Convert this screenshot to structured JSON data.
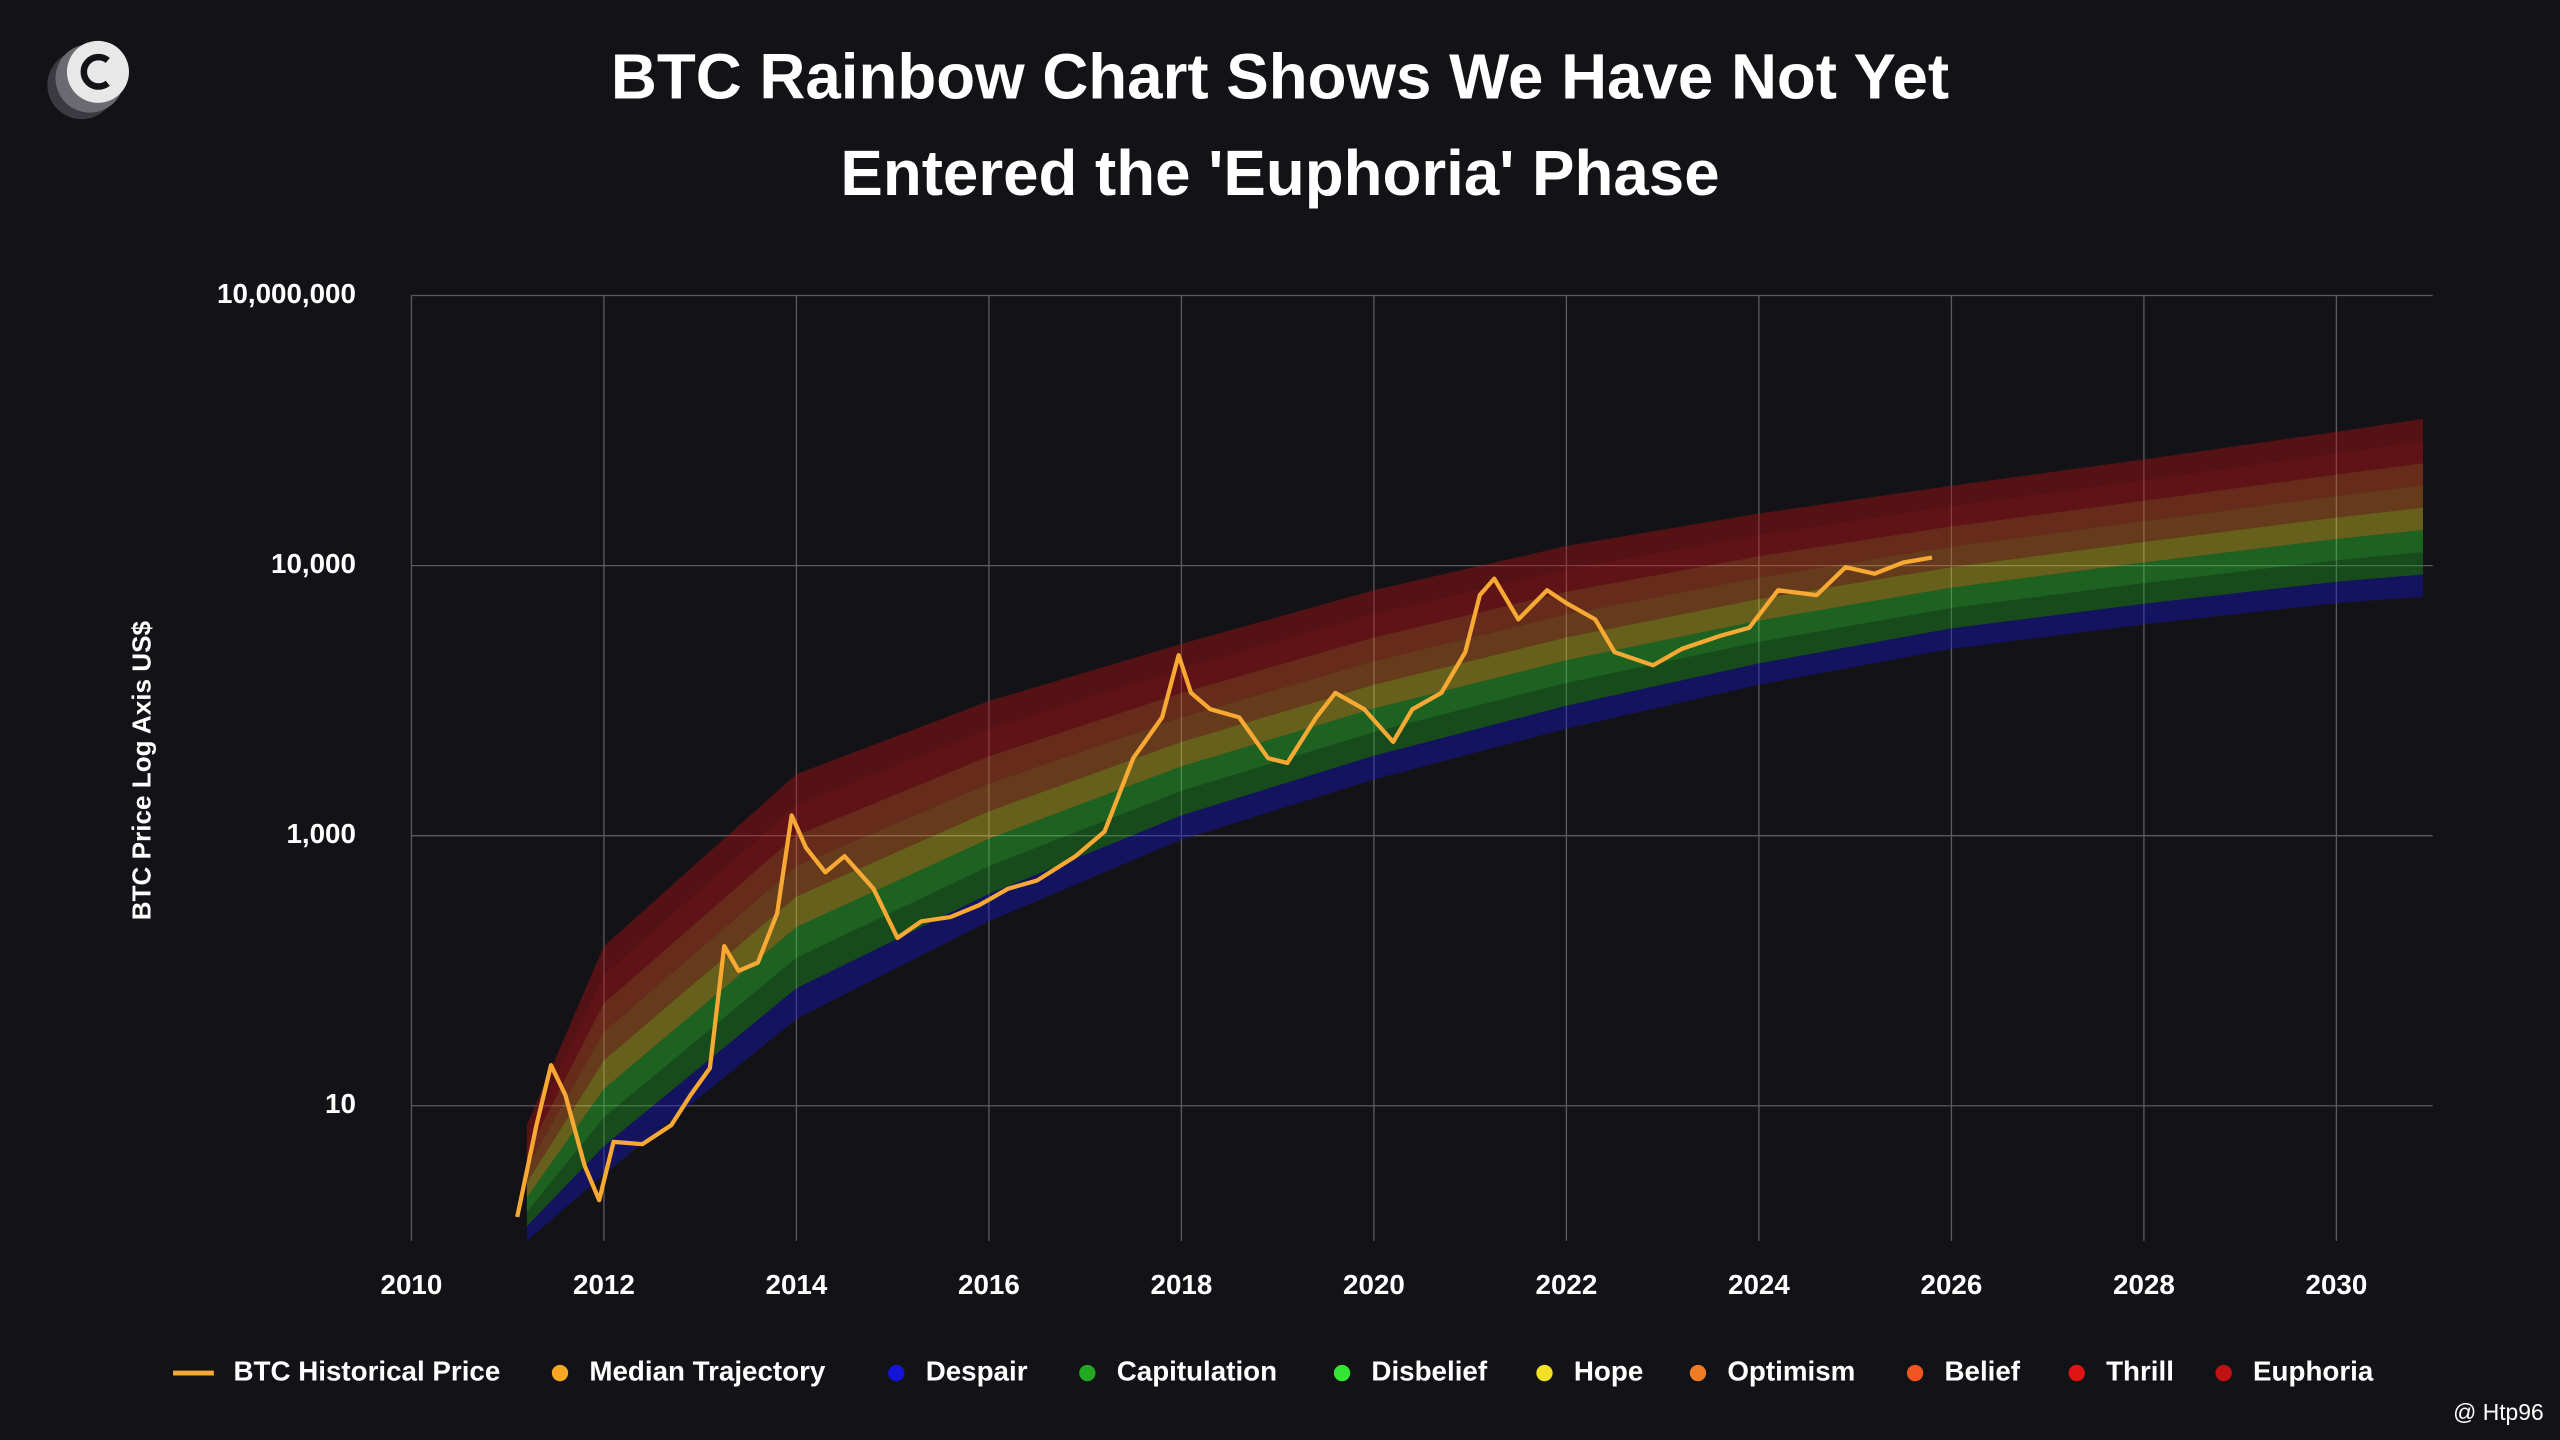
{
  "chart_data": {
    "type": "line",
    "title": [
      "BTC Rainbow Chart Shows We Have Not Yet",
      "Entered the 'Euphoria' Phase"
    ],
    "y_label": "BTC Price Log Axis US$",
    "log_scale": true,
    "grid": true,
    "legend": "bottom",
    "xlim": [
      2010,
      2031
    ],
    "xticks": [
      2010,
      2012,
      2014,
      2016,
      2018,
      2020,
      2022,
      2024,
      2026,
      2028,
      2030
    ],
    "ylim": [
      1,
      10000000
    ],
    "yticks": [
      10,
      {
        "value": 1000,
        "label": "1,000"
      },
      {
        "value": 10000,
        "label": "10,000"
      },
      {
        "value": 10000000,
        "label": "10,000,000"
      }
    ],
    "series": [
      {
        "name": "BTC Historical Price",
        "color": "#f7a934",
        "x": [
          2011.1,
          2011.3,
          2011.45,
          2011.6,
          2011.8,
          2011.95,
          2012.1,
          2012.4,
          2012.7,
          2012.9,
          2013.1,
          2013.25,
          2013.4,
          2013.6,
          2013.8,
          2013.95,
          2014.1,
          2014.3,
          2014.5,
          2014.8,
          2015.05,
          2015.3,
          2015.6,
          2015.9,
          2016.2,
          2016.5,
          2016.9,
          2017.2,
          2017.5,
          2017.8,
          2017.97,
          2018.1,
          2018.3,
          2018.6,
          2018.9,
          2019.1,
          2019.4,
          2019.6,
          2019.9,
          2020.2,
          2020.4,
          2020.7,
          2020.95,
          2021.1,
          2021.25,
          2021.5,
          2021.8,
          2022.0,
          2022.3,
          2022.5,
          2022.9,
          2023.2,
          2023.6,
          2023.9,
          2024.2,
          2024.6,
          2024.9,
          2025.2,
          2025.5,
          2025.8
        ],
        "values": [
          1.5,
          7.2,
          20,
          12,
          3.6,
          2.0,
          5.4,
          5.2,
          7.2,
          12,
          19,
          152,
          100,
          115,
          266,
          1190,
          813,
          535,
          705,
          405,
          175,
          232,
          250,
          306,
          405,
          466,
          705,
          1035,
          1937,
          2743,
          4656,
          3380,
          2940,
          2743,
          1937,
          1858,
          2743,
          3380,
          2940,
          2225,
          2940,
          3380,
          4786,
          7780,
          8950,
          6320,
          8110,
          7260,
          6320,
          4786,
          4276,
          4920,
          5500,
          5890,
          8110,
          7780,
          9860,
          9330,
          10860,
          12300
        ]
      }
    ],
    "median": {
      "name": "Median Trajectory",
      "color": "#f5a623"
    },
    "rainbow": {
      "x": [
        2011.2,
        2012,
        2014,
        2016,
        2018,
        2020,
        2022,
        2024,
        2026,
        2028,
        2030,
        2030.9
      ],
      "lower": [
        1.0,
        3.1,
        44,
        232,
        933,
        1615,
        2490,
        3620,
        4920,
        6060,
        7260,
        7670
      ],
      "upper": [
        7.2,
        152,
        1690,
        3150,
        5130,
        8110,
        16500,
        38000,
        77300,
        151000,
        306000,
        428000
      ],
      "bands": [
        {
          "name": "Despair",
          "color": "#1414d8"
        },
        {
          "name": "Capitulation",
          "color": "#22a822"
        },
        {
          "name": "Disbelief",
          "color": "#33e633"
        },
        {
          "name": "Hope",
          "color": "#f2e024"
        },
        {
          "name": "Optimism",
          "color": "#f07d24"
        },
        {
          "name": "Belief",
          "color": "#f05522"
        },
        {
          "name": "Thrill",
          "color": "#e01414"
        },
        {
          "name": "Euphoria",
          "color": "#c01212"
        }
      ]
    },
    "credit": "@ Htp96"
  }
}
